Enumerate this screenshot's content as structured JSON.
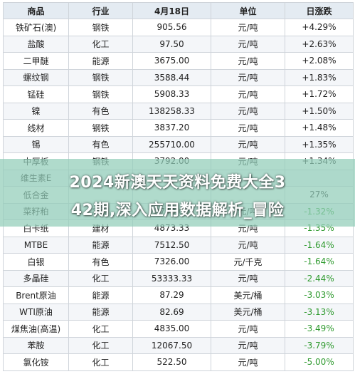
{
  "table": {
    "headers": [
      "商品",
      "行业",
      "4月18日",
      "单位",
      "日涨跌"
    ],
    "rows": [
      {
        "name": "铁矿石(澳)",
        "industry": "钢铁",
        "price": "905.56",
        "unit": "元/吨",
        "change": "+4.29%",
        "dir": "up"
      },
      {
        "name": "盐酸",
        "industry": "化工",
        "price": "97.50",
        "unit": "元/吨",
        "change": "+2.63%",
        "dir": "up"
      },
      {
        "name": "二甲醚",
        "industry": "能源",
        "price": "3675.00",
        "unit": "元/吨",
        "change": "+2.08%",
        "dir": "up"
      },
      {
        "name": "螺纹钢",
        "industry": "钢铁",
        "price": "3588.44",
        "unit": "元/吨",
        "change": "+1.83%",
        "dir": "up"
      },
      {
        "name": "锰硅",
        "industry": "钢铁",
        "price": "5908.33",
        "unit": "元/吨",
        "change": "+1.72%",
        "dir": "up"
      },
      {
        "name": "镍",
        "industry": "有色",
        "price": "138258.33",
        "unit": "元/吨",
        "change": "+1.50%",
        "dir": "up"
      },
      {
        "name": "线材",
        "industry": "钢铁",
        "price": "3837.20",
        "unit": "元/吨",
        "change": "+1.48%",
        "dir": "up"
      },
      {
        "name": "锡",
        "industry": "有色",
        "price": "255710.00",
        "unit": "元/吨",
        "change": "+1.35%",
        "dir": "up"
      },
      {
        "name": "中厚板",
        "industry": "钢铁",
        "price": "3792.00",
        "unit": "元/吨",
        "change": "+1.34%",
        "dir": "up"
      },
      {
        "name": "维生素E",
        "industry": "",
        "price": "",
        "unit": "",
        "change": "",
        "dir": "up"
      },
      {
        "name": "低合金",
        "industry": "",
        "price": "",
        "unit": "",
        "change": "27%",
        "dir": "up"
      },
      {
        "name": "菜籽粕",
        "industry": "农副",
        "price": "2740.00",
        "unit": "元/吨",
        "change": "-1.32%",
        "dir": "down"
      },
      {
        "name": "白卡纸",
        "industry": "建材",
        "price": "4873.33",
        "unit": "元/吨",
        "change": "-1.35%",
        "dir": "down"
      },
      {
        "name": "MTBE",
        "industry": "能源",
        "price": "7512.50",
        "unit": "元/吨",
        "change": "-1.64%",
        "dir": "down"
      },
      {
        "name": "白银",
        "industry": "有色",
        "price": "7326.00",
        "unit": "元/千克",
        "change": "-1.64%",
        "dir": "down"
      },
      {
        "name": "多晶硅",
        "industry": "化工",
        "price": "53333.33",
        "unit": "元/吨",
        "change": "-2.44%",
        "dir": "down"
      },
      {
        "name": "Brent原油",
        "industry": "能源",
        "price": "87.29",
        "unit": "美元/桶",
        "change": "-3.03%",
        "dir": "down"
      },
      {
        "name": "WTI原油",
        "industry": "能源",
        "price": "82.69",
        "unit": "美元/桶",
        "change": "-3.13%",
        "dir": "down"
      },
      {
        "name": "煤焦油(高温)",
        "industry": "化工",
        "price": "4835.00",
        "unit": "元/吨",
        "change": "-3.49%",
        "dir": "down"
      },
      {
        "name": "苯胺",
        "industry": "化工",
        "price": "12067.50",
        "unit": "元/吨",
        "change": "-3.79%",
        "dir": "down"
      },
      {
        "name": "氯化铵",
        "industry": "化工",
        "price": "522.50",
        "unit": "元/吨",
        "change": "-5.00%",
        "dir": "down"
      }
    ]
  },
  "overlay": {
    "line1": "2024新澳天天资料免费大全3",
    "line2": "42期,深入应用数据解析_冒险"
  },
  "colors": {
    "up": "#e02020",
    "down": "#2f9a2f",
    "header_bg": "#e4ebf2",
    "overlay": "#91cdb9"
  }
}
